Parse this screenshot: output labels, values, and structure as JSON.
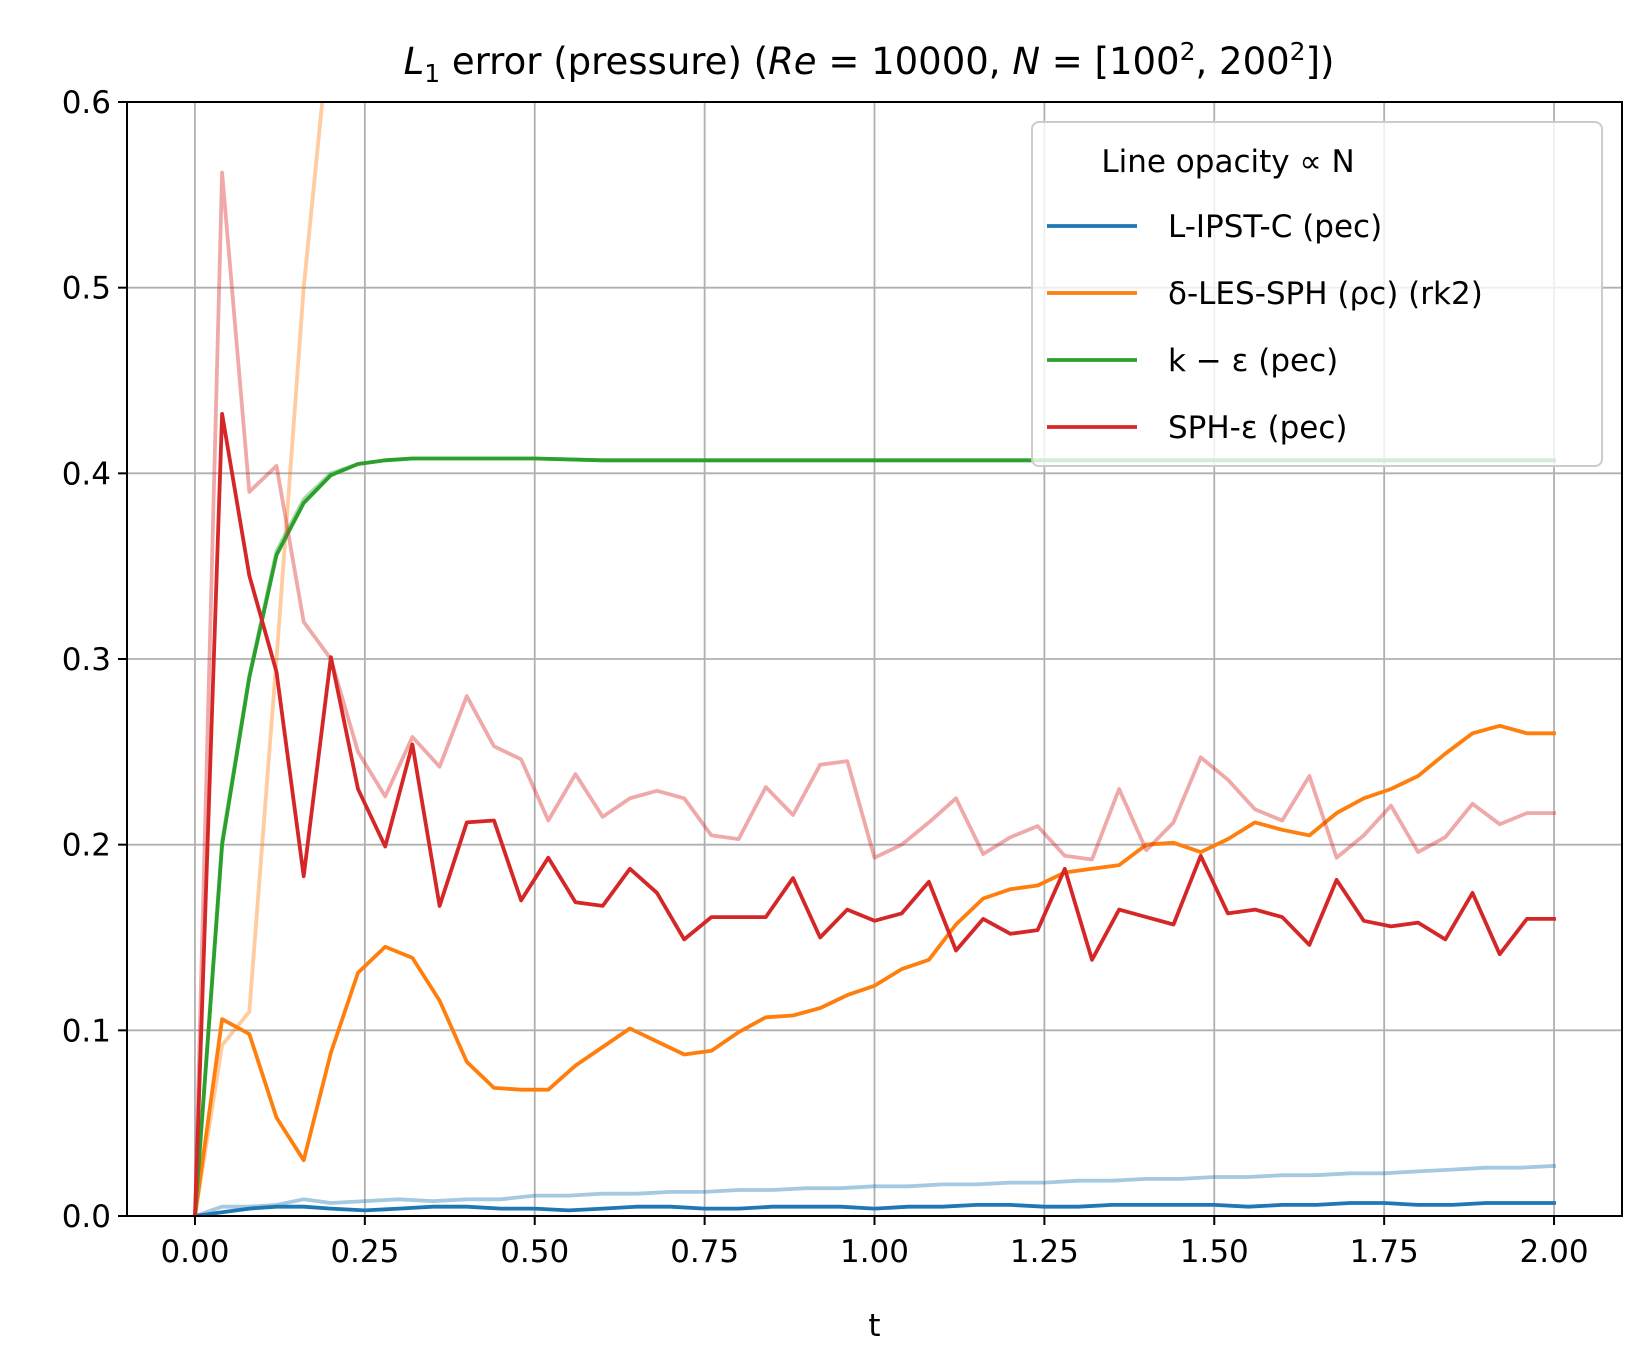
{
  "chart_data": {
    "type": "line",
    "title": {
      "prefix": "L",
      "prefix_sub": "1",
      "main": " error (pressure)  (",
      "re_label": "Re",
      "eq_part": " = 10000, ",
      "n_label": "N",
      "eq_part2": " = [100",
      "sup1": "2",
      "mid": ", 200",
      "sup2": "2",
      "end": "])"
    },
    "xlabel": "t",
    "ylabel": "",
    "xlim": [
      -0.1,
      2.1
    ],
    "ylim": [
      0.0,
      0.6
    ],
    "xticks": [
      0.0,
      0.25,
      0.5,
      0.75,
      1.0,
      1.25,
      1.5,
      1.75,
      2.0
    ],
    "xtick_labels": [
      "0.00",
      "0.25",
      "0.50",
      "0.75",
      "1.00",
      "1.25",
      "1.50",
      "1.75",
      "2.00"
    ],
    "yticks": [
      0.0,
      0.1,
      0.2,
      0.3,
      0.4,
      0.5,
      0.6
    ],
    "ytick_labels": [
      "0.0",
      "0.1",
      "0.2",
      "0.3",
      "0.4",
      "0.5",
      "0.6"
    ],
    "grid": true,
    "legend": {
      "title": "Line opacity  ∝  N",
      "placement": "top-right",
      "entries": [
        {
          "label": "L-IPST-C (pec)",
          "color": "#1f77b4"
        },
        {
          "label": "δ-LES-SPH (ρc) (rk2)",
          "color": "#ff7f0e"
        },
        {
          "label": "k − ε (pec)",
          "color": "#2ca02c"
        },
        {
          "label": "SPH-ε (pec)",
          "color": "#d62728"
        }
      ]
    },
    "series": [
      {
        "name": "L-IPST-C (pec)",
        "N": "100^2",
        "color": "#1f77b4",
        "opacity": 0.4,
        "x": [
          0.0,
          0.04,
          0.08,
          0.12,
          0.16,
          0.2,
          0.25,
          0.3,
          0.35,
          0.4,
          0.45,
          0.5,
          0.55,
          0.6,
          0.65,
          0.7,
          0.75,
          0.8,
          0.85,
          0.9,
          0.95,
          1.0,
          1.05,
          1.1,
          1.15,
          1.2,
          1.25,
          1.3,
          1.35,
          1.4,
          1.45,
          1.5,
          1.55,
          1.6,
          1.65,
          1.7,
          1.75,
          1.8,
          1.85,
          1.9,
          1.95,
          2.0
        ],
        "y": [
          0.0,
          0.005,
          0.005,
          0.006,
          0.009,
          0.007,
          0.008,
          0.009,
          0.008,
          0.009,
          0.009,
          0.011,
          0.011,
          0.012,
          0.012,
          0.013,
          0.013,
          0.014,
          0.014,
          0.015,
          0.015,
          0.016,
          0.016,
          0.017,
          0.017,
          0.018,
          0.018,
          0.019,
          0.019,
          0.02,
          0.02,
          0.021,
          0.021,
          0.022,
          0.022,
          0.023,
          0.023,
          0.024,
          0.025,
          0.026,
          0.026,
          0.027
        ]
      },
      {
        "name": "L-IPST-C (pec)",
        "N": "200^2",
        "color": "#1f77b4",
        "opacity": 1.0,
        "x": [
          0.0,
          0.04,
          0.08,
          0.12,
          0.16,
          0.2,
          0.25,
          0.3,
          0.35,
          0.4,
          0.45,
          0.5,
          0.55,
          0.6,
          0.65,
          0.7,
          0.75,
          0.8,
          0.85,
          0.9,
          0.95,
          1.0,
          1.05,
          1.1,
          1.15,
          1.2,
          1.25,
          1.3,
          1.35,
          1.4,
          1.45,
          1.5,
          1.55,
          1.6,
          1.65,
          1.7,
          1.75,
          1.8,
          1.85,
          1.9,
          1.95,
          2.0
        ],
        "y": [
          0.0,
          0.002,
          0.004,
          0.005,
          0.005,
          0.004,
          0.003,
          0.004,
          0.005,
          0.005,
          0.004,
          0.004,
          0.003,
          0.004,
          0.005,
          0.005,
          0.004,
          0.004,
          0.005,
          0.005,
          0.005,
          0.004,
          0.005,
          0.005,
          0.006,
          0.006,
          0.005,
          0.005,
          0.006,
          0.006,
          0.006,
          0.006,
          0.005,
          0.006,
          0.006,
          0.007,
          0.007,
          0.006,
          0.006,
          0.007,
          0.007,
          0.007
        ]
      },
      {
        "name": "δ-LES-SPH (ρc) (rk2)",
        "N": "100^2",
        "color": "#ff7f0e",
        "opacity": 0.4,
        "x": [
          0.0,
          0.04,
          0.08,
          0.12,
          0.16,
          0.19
        ],
        "y": [
          0.0,
          0.092,
          0.11,
          0.3,
          0.5,
          0.61
        ]
      },
      {
        "name": "δ-LES-SPH (ρc) (rk2)",
        "N": "200^2",
        "color": "#ff7f0e",
        "opacity": 1.0,
        "x": [
          0.0,
          0.04,
          0.08,
          0.12,
          0.16,
          0.2,
          0.24,
          0.28,
          0.32,
          0.36,
          0.4,
          0.44,
          0.48,
          0.52,
          0.56,
          0.6,
          0.64,
          0.68,
          0.72,
          0.76,
          0.8,
          0.84,
          0.88,
          0.92,
          0.96,
          1.0,
          1.04,
          1.08,
          1.12,
          1.16,
          1.2,
          1.24,
          1.28,
          1.32,
          1.36,
          1.4,
          1.44,
          1.48,
          1.52,
          1.56,
          1.6,
          1.64,
          1.68,
          1.72,
          1.76,
          1.8,
          1.84,
          1.88,
          1.92,
          1.96,
          2.0
        ],
        "y": [
          0.0,
          0.106,
          0.098,
          0.053,
          0.03,
          0.088,
          0.131,
          0.145,
          0.139,
          0.116,
          0.083,
          0.069,
          0.068,
          0.068,
          0.081,
          0.091,
          0.101,
          0.094,
          0.087,
          0.089,
          0.099,
          0.107,
          0.108,
          0.112,
          0.119,
          0.124,
          0.133,
          0.138,
          0.157,
          0.171,
          0.176,
          0.178,
          0.185,
          0.187,
          0.189,
          0.2,
          0.201,
          0.196,
          0.203,
          0.212,
          0.208,
          0.205,
          0.217,
          0.225,
          0.23,
          0.237,
          0.249,
          0.26,
          0.264,
          0.26,
          0.26
        ]
      },
      {
        "name": "k − ε (pec)",
        "N": "100^2",
        "color": "#2ca02c",
        "opacity": 0.4,
        "x": [
          0.0,
          0.04,
          0.08,
          0.12,
          0.16,
          0.2,
          0.24,
          0.28,
          0.32,
          0.36,
          0.4,
          0.5,
          0.6,
          0.8,
          1.0,
          1.2,
          1.4,
          1.6,
          1.8,
          2.0
        ],
        "y": [
          0.0,
          0.202,
          0.291,
          0.358,
          0.386,
          0.4,
          0.405,
          0.407,
          0.408,
          0.408,
          0.408,
          0.408,
          0.407,
          0.407,
          0.407,
          0.407,
          0.407,
          0.407,
          0.407,
          0.407
        ]
      },
      {
        "name": "k − ε (pec)",
        "N": "200^2",
        "color": "#2ca02c",
        "opacity": 1.0,
        "x": [
          0.0,
          0.04,
          0.08,
          0.12,
          0.16,
          0.2,
          0.24,
          0.28,
          0.32,
          0.36,
          0.4,
          0.5,
          0.6,
          0.8,
          1.0,
          1.2,
          1.4,
          1.6,
          1.8,
          2.0
        ],
        "y": [
          0.0,
          0.2,
          0.29,
          0.356,
          0.384,
          0.399,
          0.405,
          0.407,
          0.408,
          0.408,
          0.408,
          0.408,
          0.407,
          0.407,
          0.407,
          0.407,
          0.407,
          0.407,
          0.407,
          0.407
        ]
      },
      {
        "name": "SPH-ε (pec)",
        "N": "100^2",
        "color": "#d62728",
        "opacity": 0.4,
        "x": [
          0.0,
          0.04,
          0.08,
          0.12,
          0.16,
          0.2,
          0.24,
          0.28,
          0.32,
          0.36,
          0.4,
          0.44,
          0.48,
          0.52,
          0.56,
          0.6,
          0.64,
          0.68,
          0.72,
          0.76,
          0.8,
          0.84,
          0.88,
          0.92,
          0.96,
          1.0,
          1.04,
          1.08,
          1.12,
          1.16,
          1.2,
          1.24,
          1.28,
          1.32,
          1.36,
          1.4,
          1.44,
          1.48,
          1.52,
          1.56,
          1.6,
          1.64,
          1.68,
          1.72,
          1.76,
          1.8,
          1.84,
          1.88,
          1.92,
          1.96,
          2.0
        ],
        "y": [
          0.0,
          0.562,
          0.39,
          0.404,
          0.32,
          0.3,
          0.25,
          0.226,
          0.258,
          0.242,
          0.28,
          0.253,
          0.246,
          0.213,
          0.238,
          0.215,
          0.225,
          0.229,
          0.225,
          0.205,
          0.203,
          0.231,
          0.216,
          0.243,
          0.245,
          0.193,
          0.2,
          0.212,
          0.225,
          0.195,
          0.204,
          0.21,
          0.194,
          0.192,
          0.23,
          0.197,
          0.212,
          0.247,
          0.235,
          0.219,
          0.213,
          0.237,
          0.193,
          0.205,
          0.221,
          0.196,
          0.204,
          0.222,
          0.211,
          0.217,
          0.217
        ]
      },
      {
        "name": "SPH-ε (pec)",
        "N": "200^2",
        "color": "#d62728",
        "opacity": 1.0,
        "x": [
          0.0,
          0.04,
          0.08,
          0.12,
          0.16,
          0.2,
          0.24,
          0.28,
          0.32,
          0.36,
          0.4,
          0.44,
          0.48,
          0.52,
          0.56,
          0.6,
          0.64,
          0.68,
          0.72,
          0.76,
          0.8,
          0.84,
          0.88,
          0.92,
          0.96,
          1.0,
          1.04,
          1.08,
          1.12,
          1.16,
          1.2,
          1.24,
          1.28,
          1.32,
          1.36,
          1.4,
          1.44,
          1.48,
          1.52,
          1.56,
          1.6,
          1.64,
          1.68,
          1.72,
          1.76,
          1.8,
          1.84,
          1.88,
          1.92,
          1.96,
          2.0
        ],
        "y": [
          0.0,
          0.432,
          0.345,
          0.293,
          0.183,
          0.301,
          0.23,
          0.199,
          0.254,
          0.167,
          0.212,
          0.213,
          0.17,
          0.193,
          0.169,
          0.167,
          0.187,
          0.174,
          0.149,
          0.161,
          0.161,
          0.161,
          0.182,
          0.15,
          0.165,
          0.159,
          0.163,
          0.18,
          0.143,
          0.16,
          0.152,
          0.154,
          0.187,
          0.138,
          0.165,
          0.161,
          0.157,
          0.194,
          0.163,
          0.165,
          0.161,
          0.146,
          0.181,
          0.159,
          0.156,
          0.158,
          0.149,
          0.174,
          0.141,
          0.16,
          0.16
        ]
      }
    ]
  }
}
